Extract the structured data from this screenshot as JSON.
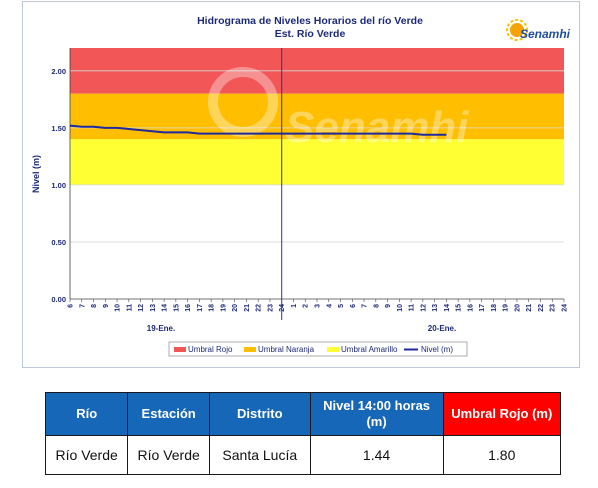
{
  "colors": {
    "umbral_rojo": "#f25656",
    "umbral_naranja": "#ffbf00",
    "umbral_amarillo": "#ffff33",
    "nivel": "#1f2a9c",
    "header_blue": "#1667b8",
    "header_red": "#ff0000"
  },
  "logo": {
    "text": "Senamhi",
    "watermark": "Senamhi"
  },
  "chart_data": {
    "type": "line",
    "title": "Hidrograma de Niveles Horarios del río Verde",
    "subtitle": "Est. Río Verde",
    "ylabel": "Nivel (m)",
    "ylim": [
      0,
      2.2
    ],
    "yticks": [
      "0.00",
      "0.50",
      "1.00",
      "1.50",
      "2.00"
    ],
    "x_hour_labels": [
      "6",
      "7",
      "8",
      "9",
      "10",
      "11",
      "12",
      "13",
      "14",
      "15",
      "16",
      "17",
      "18",
      "19",
      "20",
      "21",
      "22",
      "23",
      "24",
      "1",
      "2",
      "3",
      "4",
      "5",
      "6",
      "7",
      "8",
      "9",
      "10",
      "11",
      "12",
      "13",
      "14",
      "15",
      "16",
      "17",
      "18",
      "19",
      "20",
      "21",
      "22",
      "23",
      "24"
    ],
    "day_labels": [
      "19-Ene.",
      "20-Ene."
    ],
    "grid": "horizontal",
    "legend_position": "bottom",
    "bands": [
      {
        "name": "Umbral Rojo",
        "from": 1.8,
        "to": 2.2,
        "color": "#f25656"
      },
      {
        "name": "Umbral Naranja",
        "from": 1.4,
        "to": 1.8,
        "color": "#ffbf00"
      },
      {
        "name": "Umbral Amarillo",
        "from": 1.0,
        "to": 1.4,
        "color": "#ffff33"
      }
    ],
    "series": [
      {
        "name": "Nivel (m)",
        "color": "#1f2a9c",
        "x_index": [
          0,
          1,
          2,
          3,
          4,
          5,
          6,
          7,
          8,
          9,
          10,
          11,
          12,
          13,
          14,
          15,
          16,
          17,
          18,
          19,
          20,
          21,
          22,
          23,
          24,
          25,
          26,
          27,
          28,
          29,
          30,
          31,
          32
        ],
        "values": [
          1.52,
          1.51,
          1.51,
          1.5,
          1.5,
          1.49,
          1.48,
          1.47,
          1.46,
          1.46,
          1.46,
          1.45,
          1.45,
          1.45,
          1.45,
          1.45,
          1.45,
          1.45,
          1.45,
          1.45,
          1.45,
          1.45,
          1.45,
          1.45,
          1.45,
          1.45,
          1.45,
          1.45,
          1.45,
          1.45,
          1.44,
          1.44,
          1.44
        ]
      }
    ],
    "legend": [
      "Umbral Rojo",
      "Umbral Naranja",
      "Umbral Amarillo",
      "Nivel (m)"
    ]
  },
  "table": {
    "headers": [
      "Río",
      "Estación",
      "Distrito",
      "Nivel 14:00 horas (m)",
      "Umbral Rojo (m)"
    ],
    "row": [
      "Río Verde",
      "Río Verde",
      "Santa Lucía",
      "1.44",
      "1.80"
    ]
  }
}
